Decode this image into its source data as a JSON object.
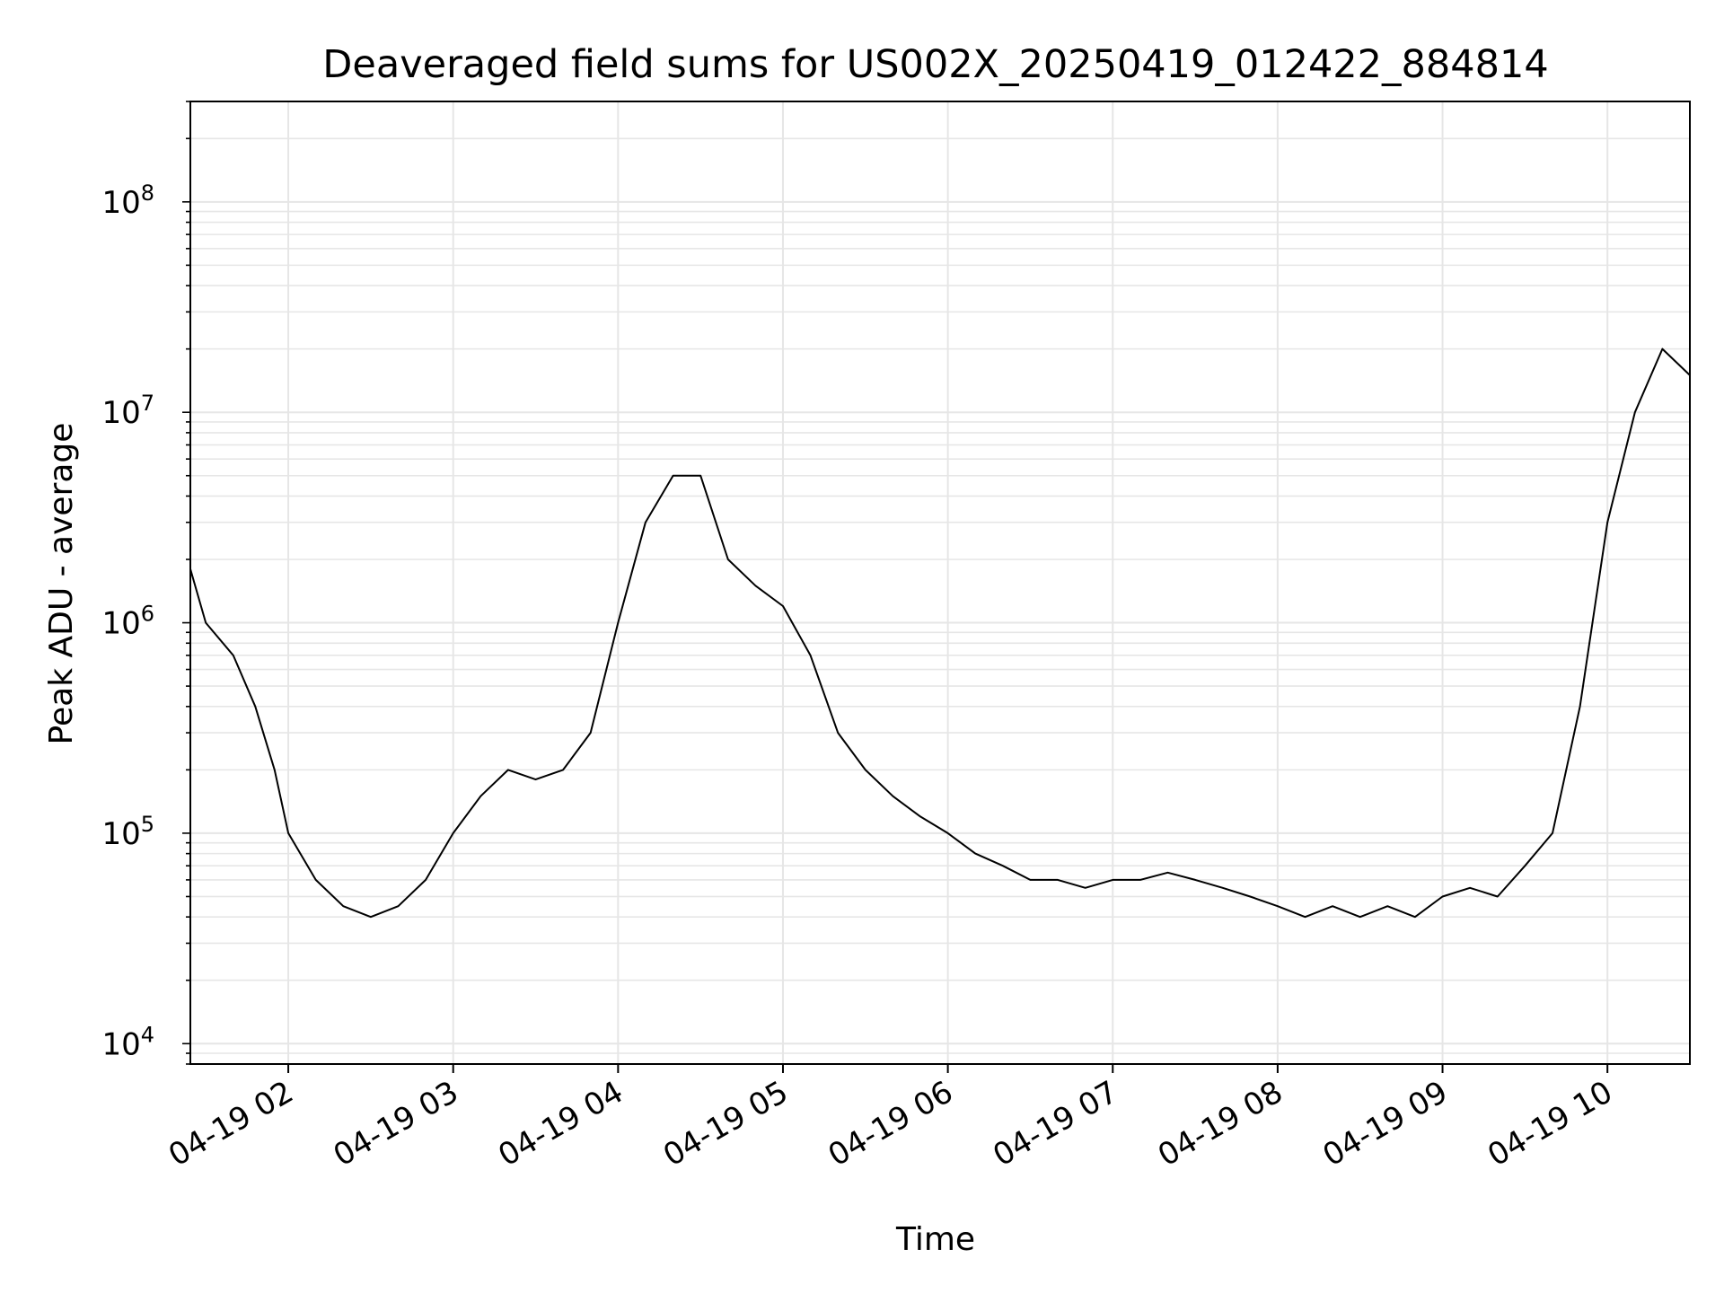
{
  "chart_data": {
    "type": "line",
    "title": "Deaveraged field sums for US002X_20250419_012422_884814",
    "xlabel": "Time",
    "ylabel": "Peak ADU - average",
    "yscale": "log",
    "ylim": [
      8000,
      300000000
    ],
    "xlim": [
      "2025-04-19 01:24:22",
      "2025-04-19 10:30:00"
    ],
    "grid": true,
    "legend": "none",
    "colors": {
      "line": "#000000",
      "grid": "#e6e6e6",
      "axis": "#000000",
      "background": "#ffffff"
    },
    "xticks": [
      {
        "value": "2025-04-19 02:00",
        "label": "04-19 02"
      },
      {
        "value": "2025-04-19 03:00",
        "label": "04-19 03"
      },
      {
        "value": "2025-04-19 04:00",
        "label": "04-19 04"
      },
      {
        "value": "2025-04-19 05:00",
        "label": "04-19 05"
      },
      {
        "value": "2025-04-19 06:00",
        "label": "04-19 06"
      },
      {
        "value": "2025-04-19 07:00",
        "label": "04-19 07"
      },
      {
        "value": "2025-04-19 08:00",
        "label": "04-19 08"
      },
      {
        "value": "2025-04-19 09:00",
        "label": "04-19 09"
      },
      {
        "value": "2025-04-19 10:00",
        "label": "04-19 10"
      }
    ],
    "yticks": [
      {
        "value": 10000,
        "base": "10",
        "exp": "4"
      },
      {
        "value": 100000,
        "base": "10",
        "exp": "5"
      },
      {
        "value": 1000000,
        "base": "10",
        "exp": "6"
      },
      {
        "value": 10000000,
        "base": "10",
        "exp": "7"
      },
      {
        "value": 100000000,
        "base": "10",
        "exp": "8"
      }
    ],
    "series": [
      {
        "x": [
          "2025-04-19 01:24:22",
          "2025-04-19 01:30",
          "2025-04-19 01:40",
          "2025-04-19 01:48",
          "2025-04-19 01:55",
          "2025-04-19 02:00",
          "2025-04-19 02:10",
          "2025-04-19 02:20",
          "2025-04-19 02:30",
          "2025-04-19 02:40",
          "2025-04-19 02:50",
          "2025-04-19 03:00",
          "2025-04-19 03:10",
          "2025-04-19 03:20",
          "2025-04-19 03:30",
          "2025-04-19 03:40",
          "2025-04-19 03:50",
          "2025-04-19 04:00",
          "2025-04-19 04:10",
          "2025-04-19 04:20",
          "2025-04-19 04:30",
          "2025-04-19 04:40",
          "2025-04-19 04:50",
          "2025-04-19 05:00",
          "2025-04-19 05:10",
          "2025-04-19 05:20",
          "2025-04-19 05:30",
          "2025-04-19 05:40",
          "2025-04-19 05:50",
          "2025-04-19 06:00",
          "2025-04-19 06:10",
          "2025-04-19 06:20",
          "2025-04-19 06:30",
          "2025-04-19 06:40",
          "2025-04-19 06:50",
          "2025-04-19 07:00",
          "2025-04-19 07:10",
          "2025-04-19 07:20",
          "2025-04-19 07:30",
          "2025-04-19 07:40",
          "2025-04-19 07:50",
          "2025-04-19 08:00",
          "2025-04-19 08:10",
          "2025-04-19 08:20",
          "2025-04-19 08:30",
          "2025-04-19 08:40",
          "2025-04-19 08:50",
          "2025-04-19 09:00",
          "2025-04-19 09:10",
          "2025-04-19 09:20",
          "2025-04-19 09:30",
          "2025-04-19 09:40",
          "2025-04-19 09:50",
          "2025-04-19 10:00",
          "2025-04-19 10:10",
          "2025-04-19 10:20",
          "2025-04-19 10:30"
        ],
        "y": [
          1800000,
          1000000,
          700000,
          400000,
          200000,
          100000,
          60000,
          45000,
          40000,
          45000,
          60000,
          100000,
          150000,
          200000,
          180000,
          200000,
          300000,
          1000000,
          3000000,
          5000000,
          5000000,
          2000000,
          1500000,
          1200000,
          700000,
          300000,
          200000,
          150000,
          120000,
          100000,
          80000,
          70000,
          60000,
          60000,
          55000,
          60000,
          60000,
          65000,
          60000,
          55000,
          50000,
          45000,
          40000,
          45000,
          40000,
          45000,
          40000,
          50000,
          55000,
          50000,
          70000,
          100000,
          400000,
          3000000,
          10000000,
          20000000,
          15000000
        ]
      }
    ]
  }
}
